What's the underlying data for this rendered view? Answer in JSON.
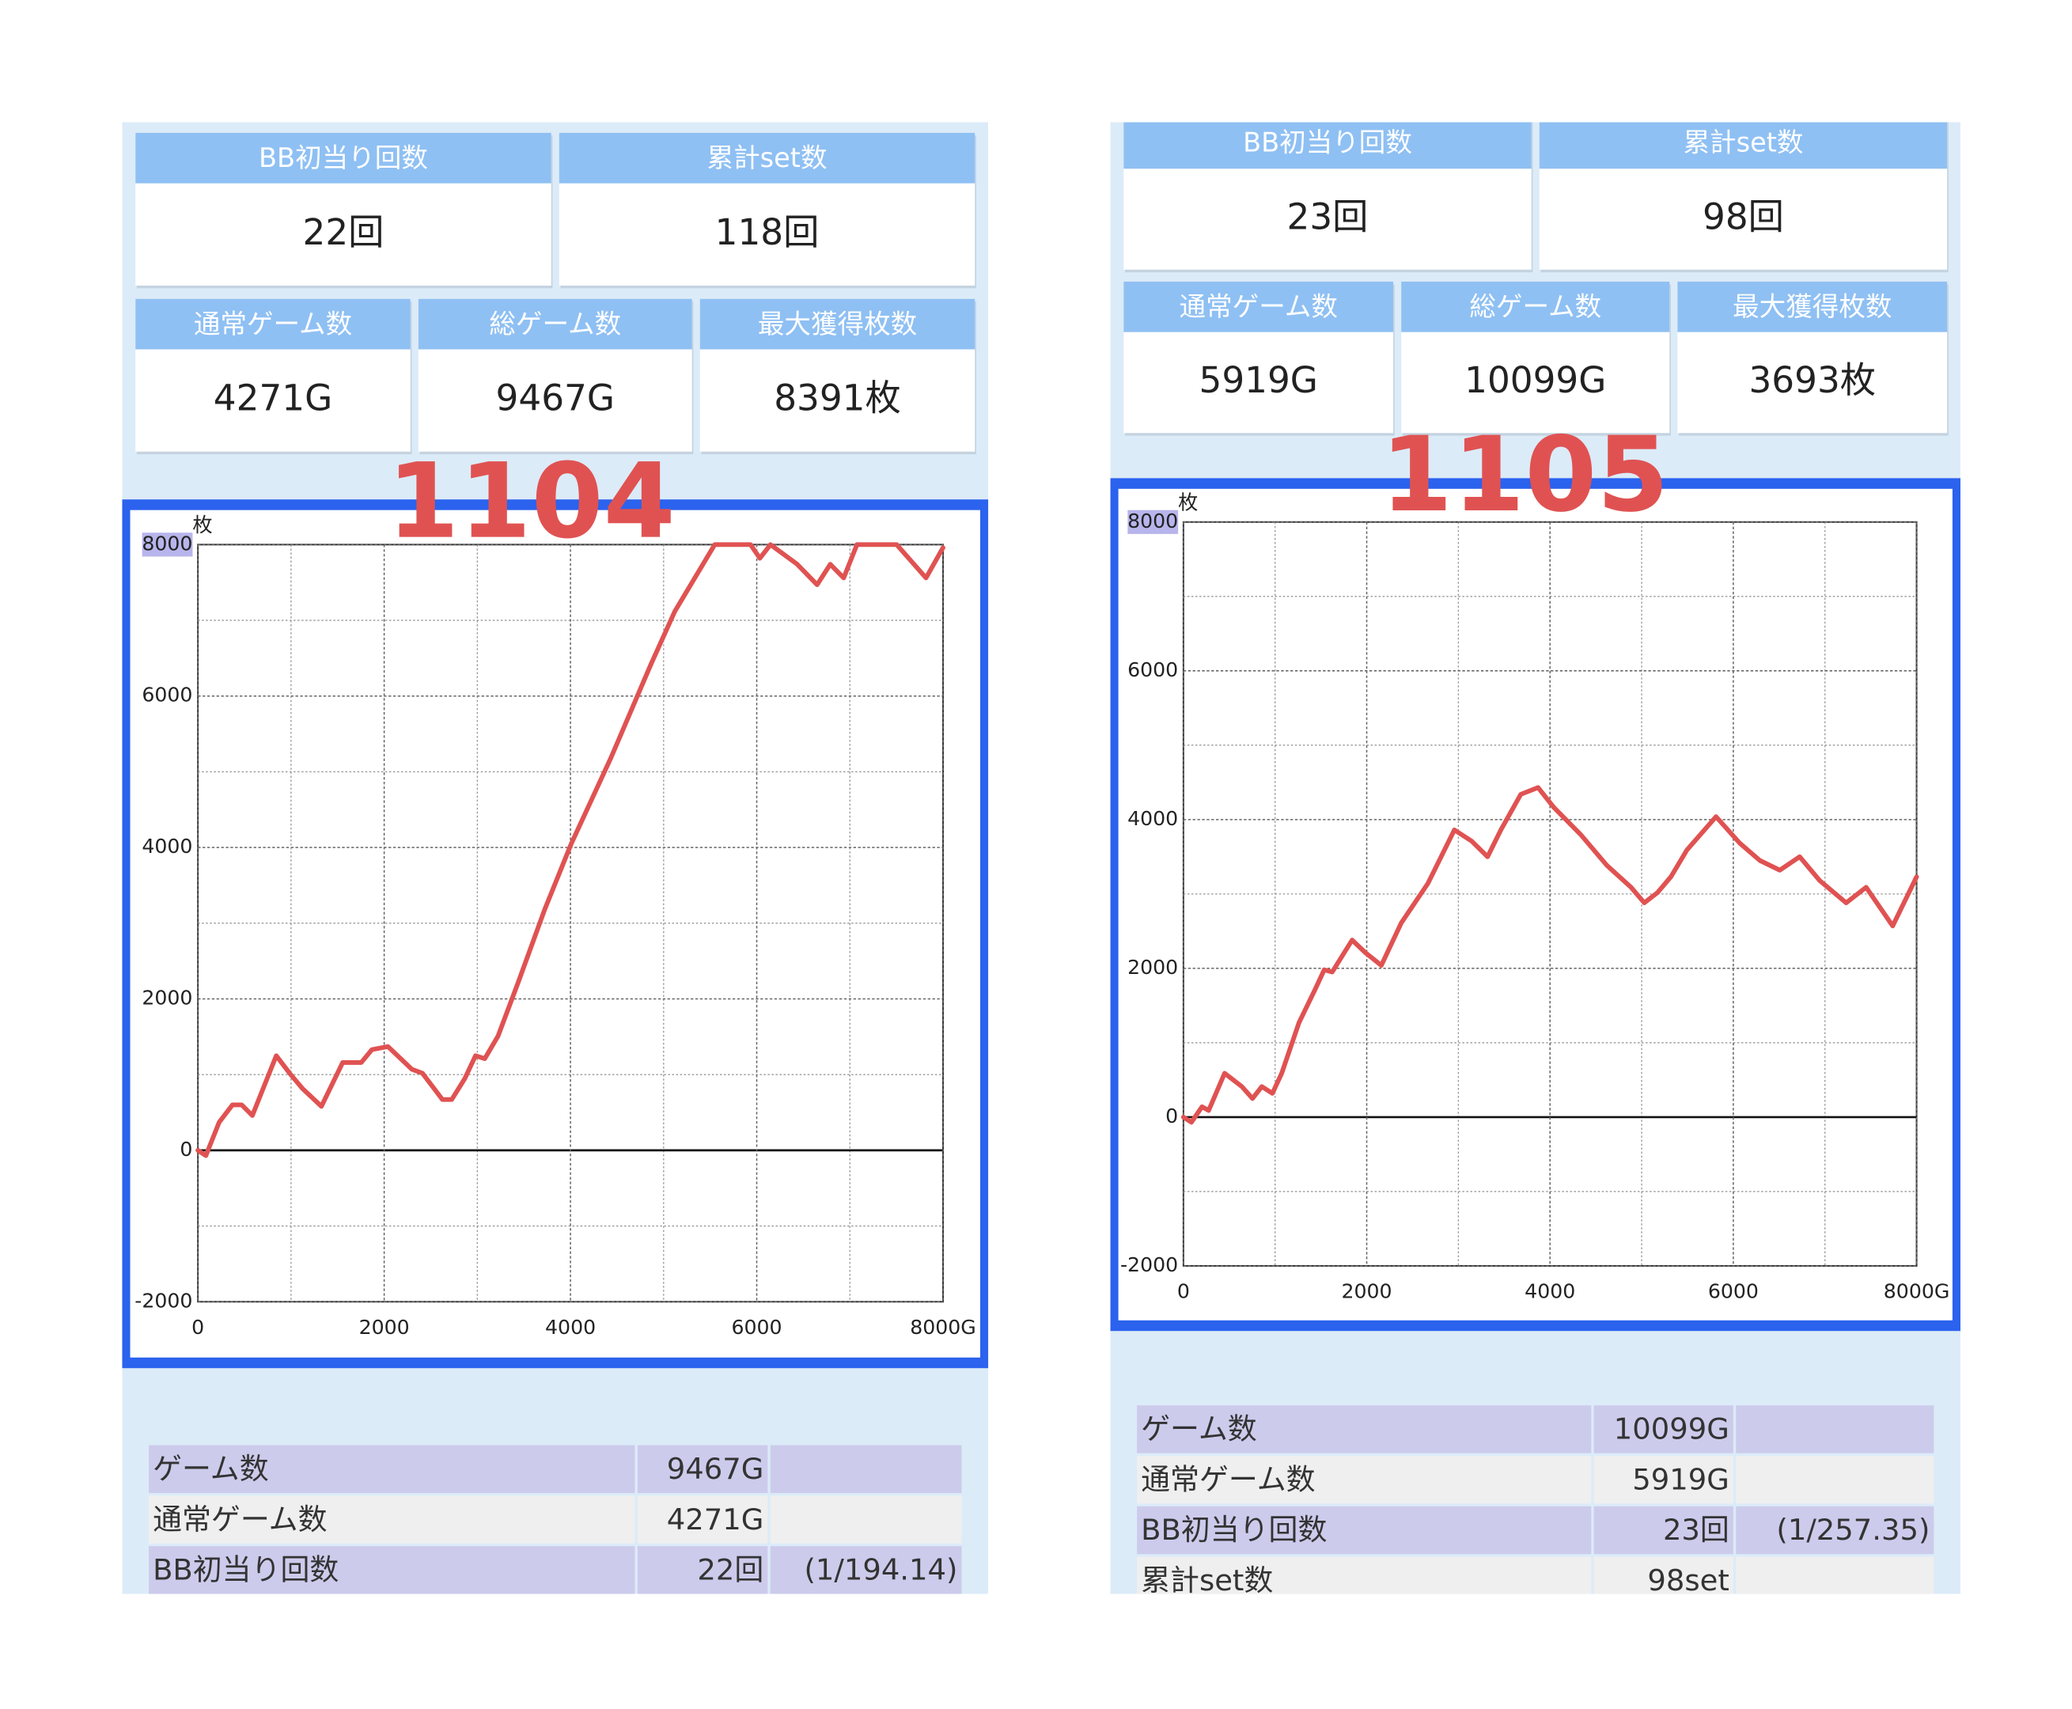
{
  "panels": [
    {
      "label": "1104",
      "stats": [
        [
          {
            "label": "BB初当り回数",
            "value": "22回"
          },
          {
            "label": "累計set数",
            "value": "118回"
          }
        ],
        [
          {
            "label": "通常ゲーム数",
            "value": "4271G"
          },
          {
            "label": "総ゲーム数",
            "value": "9467G"
          },
          {
            "label": "最大獲得枚数",
            "value": "8391枚"
          }
        ]
      ],
      "chart": {
        "type": "line",
        "unit": "枚",
        "color": "#e05252",
        "grid": true,
        "xlim": [
          0,
          8000
        ],
        "ylim": [
          -2000,
          8000
        ],
        "xticks": [
          0,
          2000,
          4000,
          6000,
          {
            "value": 8000,
            "label": "8000G"
          }
        ],
        "yticks": [
          -2000,
          0,
          2000,
          4000,
          6000,
          8000
        ],
        "x": [
          0,
          85,
          228,
          371,
          470,
          585,
          841,
          984,
          1127,
          1326,
          1554,
          1754,
          1868,
          2040,
          2297,
          2410,
          2625,
          2725,
          2867,
          2981,
          3080,
          3223,
          3437,
          3723,
          4008,
          4436,
          4864,
          5121,
          5549,
          5934,
          6034,
          6148,
          6434,
          6648,
          6790,
          6933,
          7076,
          7503,
          7817,
          8000
        ],
        "values": [
          0,
          -70,
          370,
          600,
          600,
          460,
          1250,
          1020,
          810,
          580,
          1160,
          1160,
          1330,
          1370,
          1070,
          1020,
          670,
          670,
          950,
          1250,
          1210,
          1510,
          2210,
          3180,
          4050,
          5190,
          6420,
          7120,
          8000,
          8000,
          7820,
          8000,
          7740,
          7470,
          7740,
          7560,
          8000,
          8000,
          7560,
          7960
        ]
      },
      "table": {
        "rows": [
          [
            "ゲーム数",
            "9467G"
          ],
          [
            "通常ゲーム数",
            "4271G"
          ],
          [
            "BB初当り回数",
            "22回",
            "(1/194.14)"
          ]
        ]
      }
    },
    {
      "label": "1105",
      "stats": [
        [
          {
            "label": "BB初当り回数",
            "value": "23回"
          },
          {
            "label": "累計set数",
            "value": "98回"
          }
        ],
        [
          {
            "label": "通常ゲーム数",
            "value": "5919G"
          },
          {
            "label": "総ゲーム数",
            "value": "10099G"
          },
          {
            "label": "最大獲得枚数",
            "value": "3693枚"
          }
        ]
      ],
      "chart": {
        "type": "line",
        "unit": "枚",
        "color": "#e05252",
        "grid": true,
        "xlim": [
          0,
          8000
        ],
        "ylim": [
          -2000,
          8000
        ],
        "xticks": [
          0,
          2000,
          4000,
          6000,
          {
            "value": 8000,
            "label": "8000G"
          }
        ],
        "yticks": [
          -2000,
          0,
          2000,
          4000,
          6000,
          8000
        ],
        "x": [
          0,
          87,
          203,
          275,
          449,
          638,
          754,
          855,
          971,
          1072,
          1261,
          1435,
          1536,
          1623,
          1841,
          1986,
          2159,
          2377,
          2667,
          2957,
          3145,
          3319,
          3464,
          3681,
          3870,
          4043,
          4333,
          4623,
          4884,
          5029,
          5174,
          5319,
          5493,
          5812,
          6072,
          6290,
          6507,
          6725,
          6942,
          7232,
          7449,
          7739,
          8000
        ],
        "values": [
          0,
          -70,
          140,
          90,
          590,
          410,
          250,
          410,
          320,
          590,
          1270,
          1710,
          1980,
          1950,
          2380,
          2210,
          2040,
          2610,
          3140,
          3860,
          3710,
          3500,
          3860,
          4340,
          4430,
          4160,
          3800,
          3380,
          3090,
          2880,
          3020,
          3230,
          3590,
          4040,
          3680,
          3450,
          3320,
          3500,
          3180,
          2880,
          3090,
          2570,
          3230
        ]
      },
      "table": {
        "rows": [
          [
            "ゲーム数",
            "10099G"
          ],
          [
            "通常ゲーム数",
            "5919G"
          ],
          [
            "BB初当り回数",
            "23回",
            "(1/257.35)"
          ],
          [
            "累計set数",
            "98set"
          ]
        ]
      }
    }
  ]
}
